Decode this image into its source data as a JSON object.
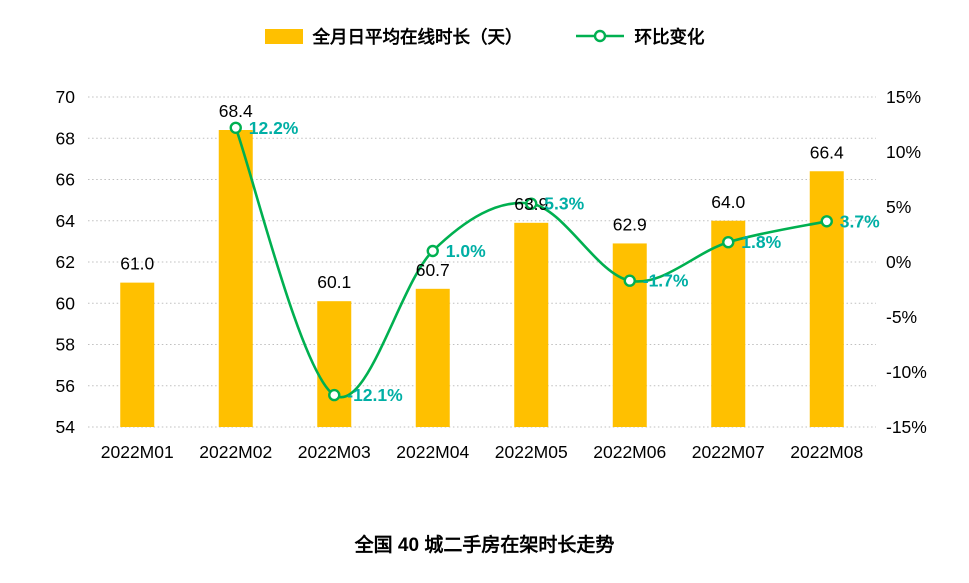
{
  "legend": {
    "bar_label": "全月日平均在线时长（天）",
    "line_label": "环比变化"
  },
  "colors": {
    "bar": "#FFC000",
    "line": "#00B050",
    "line_label": "#00AFA5",
    "grid": "#BFBFBF",
    "text": "#000000"
  },
  "chart_data": {
    "type": "bar+line",
    "title": "全国 40 城二手房在架时长走势",
    "legend_position": "top",
    "grid": "horizontal-dotted",
    "categories": [
      "2022M01",
      "2022M02",
      "2022M03",
      "2022M04",
      "2022M05",
      "2022M06",
      "2022M07",
      "2022M08"
    ],
    "series": [
      {
        "name": "全月日平均在线时长（天）",
        "type": "bar",
        "axis": "left",
        "values": [
          61.0,
          68.4,
          60.1,
          60.7,
          63.9,
          62.9,
          64.0,
          66.4
        ],
        "labels": [
          "61.0",
          "68.4",
          "60.1",
          "60.7",
          "63.9",
          "62.9",
          "64.0",
          "66.4"
        ]
      },
      {
        "name": "环比变化",
        "type": "line",
        "axis": "right",
        "values": [
          null,
          12.2,
          -12.1,
          1.0,
          5.3,
          -1.7,
          1.8,
          3.7
        ],
        "labels": [
          null,
          "12.2%",
          "-12.1%",
          "1.0%",
          "5.3%",
          "-1.7%",
          "1.8%",
          "3.7%"
        ]
      }
    ],
    "left_axis": {
      "min": 54,
      "max": 70,
      "step": 2,
      "tick_labels": [
        "70",
        "68",
        "66",
        "64",
        "62",
        "60",
        "58",
        "56",
        "54"
      ]
    },
    "right_axis": {
      "min": -15,
      "max": 15,
      "step": 5,
      "tick_labels": [
        "15%",
        "10%",
        "5%",
        "0%",
        "-5%",
        "-10%",
        "-15%"
      ]
    }
  }
}
